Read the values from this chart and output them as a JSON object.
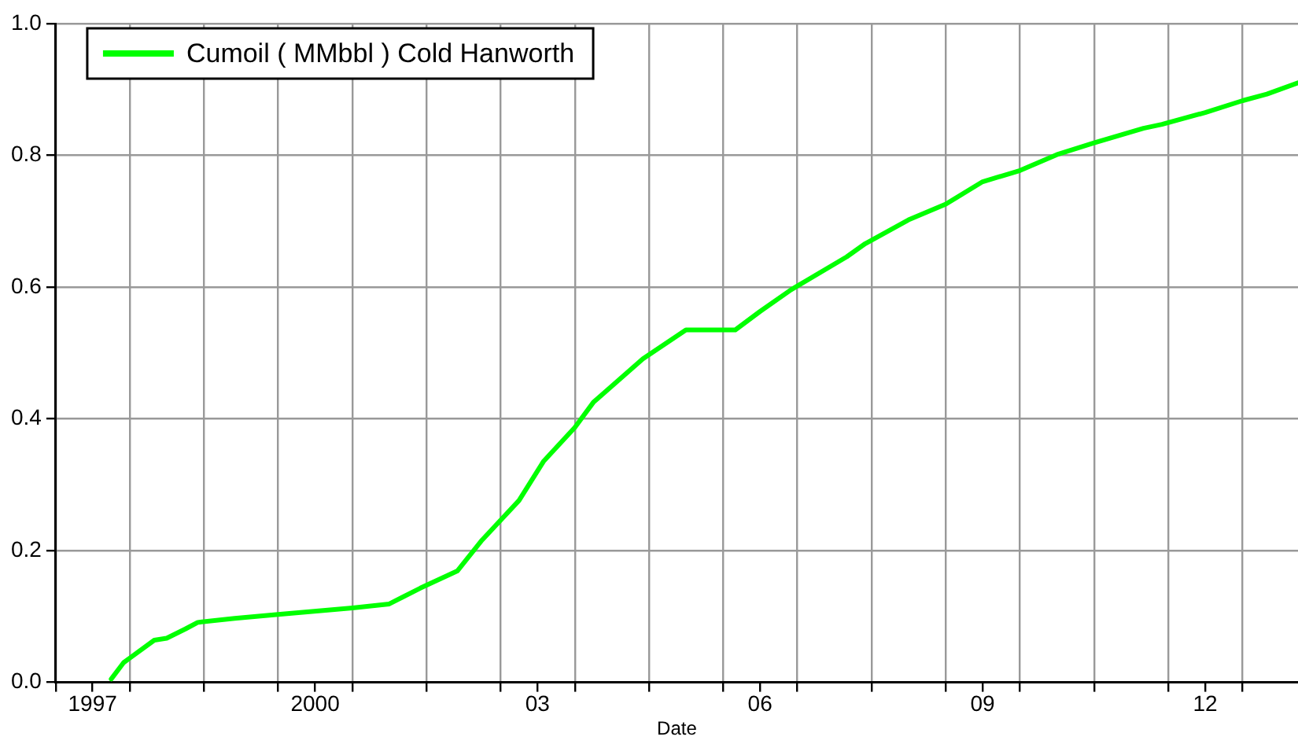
{
  "chart_data": {
    "type": "line",
    "xlabel": "Date",
    "legend": "top left",
    "grid": true,
    "marker": "none",
    "line_style": "solid",
    "x": [
      "1997-10",
      "1997-12",
      "1998-01",
      "1998-05",
      "1998-07",
      "1998-10",
      "1998-12",
      "1999-06",
      "2000-01",
      "2001-01",
      "2001-07",
      "2001-12",
      "2002-06",
      "2002-10",
      "2003-04",
      "2003-08",
      "2004-01",
      "2004-04",
      "2004-12",
      "2005-07",
      "2006-03",
      "2006-07",
      "2006-12",
      "2007-09",
      "2007-12",
      "2008-07",
      "2009-01",
      "2009-07",
      "2010-01",
      "2010-07",
      "2011-01",
      "2011-09",
      "2011-12",
      "2012-07",
      "2013-01",
      "2013-05",
      "2013-10"
    ],
    "series": [
      {
        "name": "Cumoil ( MMbbl ) Cold Hanworth",
        "color": "#00ff00",
        "values": [
          0.005,
          0.03,
          0.037,
          0.064,
          0.067,
          0.081,
          0.091,
          0.097,
          0.103,
          0.113,
          0.119,
          0.143,
          0.169,
          0.216,
          0.276,
          0.336,
          0.387,
          0.425,
          0.491,
          0.535,
          0.535,
          0.563,
          0.596,
          0.646,
          0.666,
          0.702,
          0.726,
          0.76,
          0.777,
          0.801,
          0.819,
          0.841,
          0.847,
          0.865,
          0.883,
          0.893,
          0.91
        ]
      }
    ],
    "xlim": [
      "1997-01",
      "2013-10"
    ],
    "xticks": [
      {
        "value": "1997-01",
        "label": null
      },
      {
        "value": "1997-07",
        "label": "1997"
      },
      {
        "value": "1998-01",
        "label": null
      },
      {
        "value": "1999-01",
        "label": null
      },
      {
        "value": "2000-01",
        "label": null
      },
      {
        "value": "2000-07",
        "label": "2000"
      },
      {
        "value": "2001-01",
        "label": null
      },
      {
        "value": "2002-01",
        "label": null
      },
      {
        "value": "2003-01",
        "label": null
      },
      {
        "value": "2003-07",
        "label": "03"
      },
      {
        "value": "2004-01",
        "label": null
      },
      {
        "value": "2005-01",
        "label": null
      },
      {
        "value": "2006-01",
        "label": null
      },
      {
        "value": "2006-07",
        "label": "06"
      },
      {
        "value": "2007-01",
        "label": null
      },
      {
        "value": "2008-01",
        "label": null
      },
      {
        "value": "2009-01",
        "label": null
      },
      {
        "value": "2009-07",
        "label": "09"
      },
      {
        "value": "2010-01",
        "label": null
      },
      {
        "value": "2011-01",
        "label": null
      },
      {
        "value": "2012-01",
        "label": null
      },
      {
        "value": "2012-07",
        "label": "12"
      },
      {
        "value": "2013-01",
        "label": null
      }
    ],
    "ylim": [
      0,
      1
    ],
    "yticks": [
      {
        "value": 0,
        "label": "0.0"
      },
      {
        "value": 0.2,
        "label": "0.2"
      },
      {
        "value": 0.4,
        "label": "0.4"
      },
      {
        "value": 0.6,
        "label": "0.6"
      },
      {
        "value": 0.8,
        "label": "0.8"
      },
      {
        "value": 1,
        "label": "1.0"
      }
    ]
  }
}
